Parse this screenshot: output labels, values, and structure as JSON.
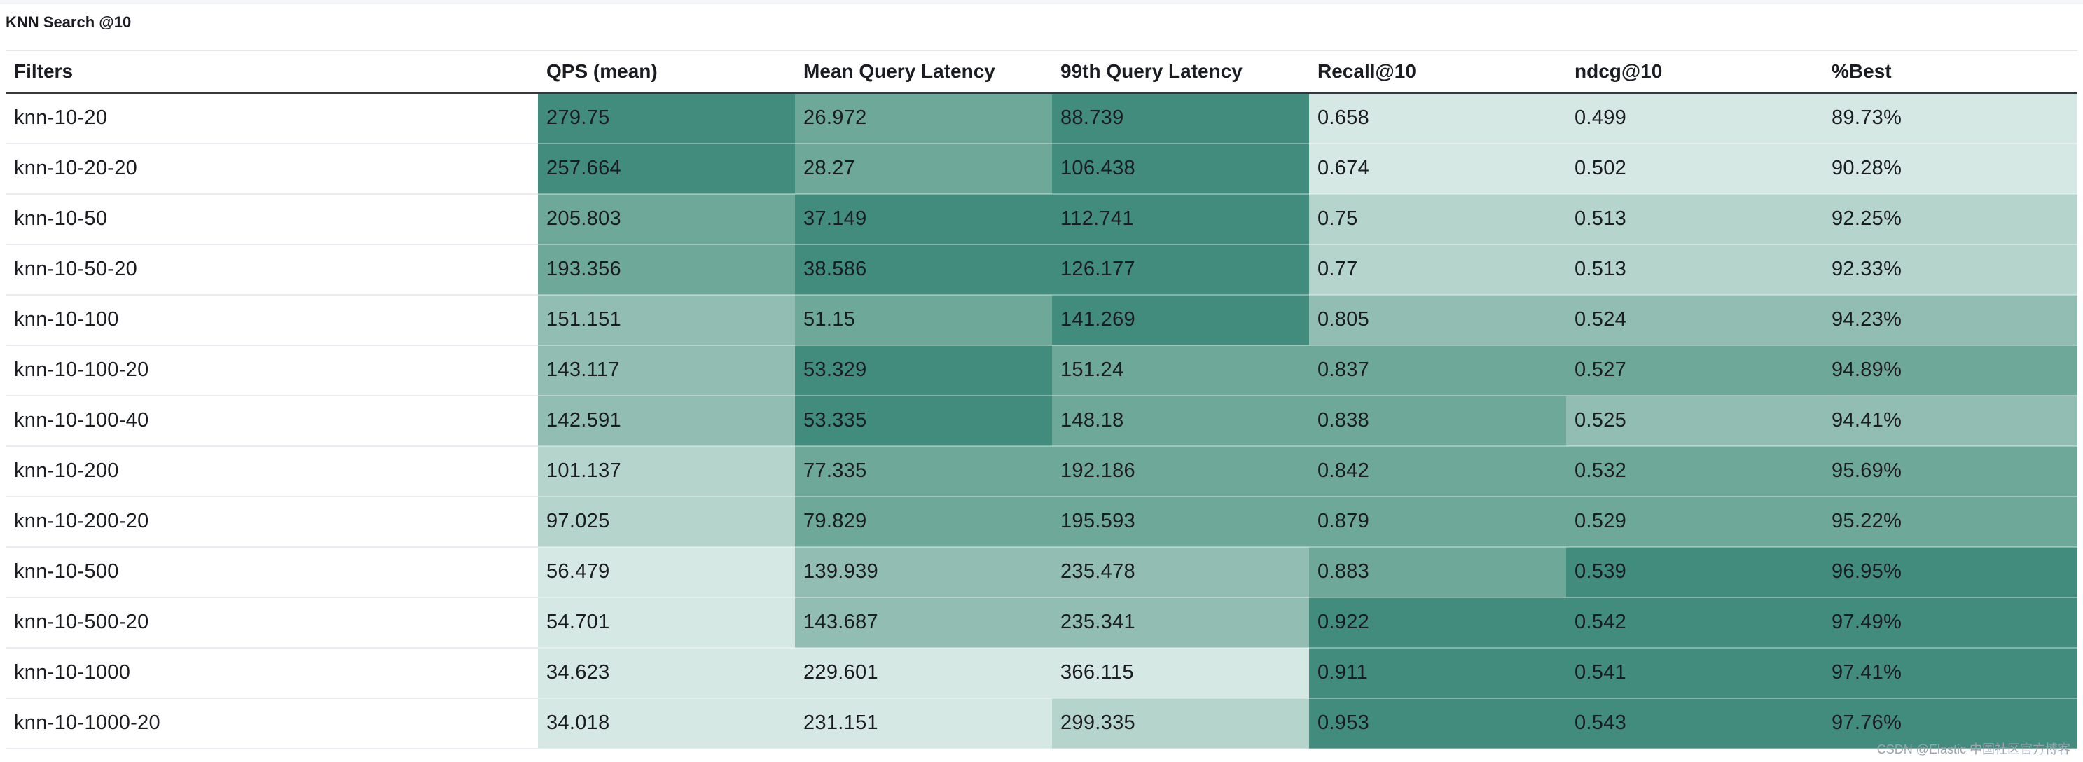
{
  "panel": {
    "title": "KNN Search @10"
  },
  "watermark": "CSDN @Elastic 中国社区官方博客",
  "colors": {
    "level1": "#d6e8e3",
    "level2": "#b5d5cc",
    "level3": "#91bdb2",
    "level4": "#6da899",
    "level5": "#418c7d",
    "header_rule": "#343741"
  },
  "chart_data": {
    "type": "table",
    "title": "KNN Search @10",
    "columns": [
      "Filters",
      "QPS (mean)",
      "Mean Query Latency",
      "99th Query Latency",
      "Recall@10",
      "ndcg@10",
      "%Best"
    ],
    "rows": [
      {
        "filter": "knn-10-20",
        "values": [
          "279.75",
          "26.972",
          "88.739",
          "0.658",
          "0.499",
          "89.73%"
        ],
        "shades": [
          5,
          4,
          5,
          1,
          1,
          1
        ]
      },
      {
        "filter": "knn-10-20-20",
        "values": [
          "257.664",
          "28.27",
          "106.438",
          "0.674",
          "0.502",
          "90.28%"
        ],
        "shades": [
          5,
          4,
          5,
          1,
          1,
          1
        ]
      },
      {
        "filter": "knn-10-50",
        "values": [
          "205.803",
          "37.149",
          "112.741",
          "0.75",
          "0.513",
          "92.25%"
        ],
        "shades": [
          4,
          5,
          5,
          2,
          2,
          2
        ]
      },
      {
        "filter": "knn-10-50-20",
        "values": [
          "193.356",
          "38.586",
          "126.177",
          "0.77",
          "0.513",
          "92.33%"
        ],
        "shades": [
          4,
          5,
          5,
          2,
          2,
          2
        ]
      },
      {
        "filter": "knn-10-100",
        "values": [
          "151.151",
          "51.15",
          "141.269",
          "0.805",
          "0.524",
          "94.23%"
        ],
        "shades": [
          3,
          4,
          5,
          3,
          3,
          3
        ]
      },
      {
        "filter": "knn-10-100-20",
        "values": [
          "143.117",
          "53.329",
          "151.24",
          "0.837",
          "0.527",
          "94.89%"
        ],
        "shades": [
          3,
          5,
          4,
          4,
          4,
          4
        ]
      },
      {
        "filter": "knn-10-100-40",
        "values": [
          "142.591",
          "53.335",
          "148.18",
          "0.838",
          "0.525",
          "94.41%"
        ],
        "shades": [
          3,
          5,
          4,
          4,
          3,
          3
        ]
      },
      {
        "filter": "knn-10-200",
        "values": [
          "101.137",
          "77.335",
          "192.186",
          "0.842",
          "0.532",
          "95.69%"
        ],
        "shades": [
          2,
          4,
          4,
          4,
          4,
          4
        ]
      },
      {
        "filter": "knn-10-200-20",
        "values": [
          "97.025",
          "79.829",
          "195.593",
          "0.879",
          "0.529",
          "95.22%"
        ],
        "shades": [
          2,
          4,
          4,
          4,
          4,
          4
        ]
      },
      {
        "filter": "knn-10-500",
        "values": [
          "56.479",
          "139.939",
          "235.478",
          "0.883",
          "0.539",
          "96.95%"
        ],
        "shades": [
          1,
          3,
          3,
          4,
          5,
          5
        ]
      },
      {
        "filter": "knn-10-500-20",
        "values": [
          "54.701",
          "143.687",
          "235.341",
          "0.922",
          "0.542",
          "97.49%"
        ],
        "shades": [
          1,
          3,
          3,
          5,
          5,
          5
        ]
      },
      {
        "filter": "knn-10-1000",
        "values": [
          "34.623",
          "229.601",
          "366.115",
          "0.911",
          "0.541",
          "97.41%"
        ],
        "shades": [
          1,
          1,
          1,
          5,
          5,
          5
        ]
      },
      {
        "filter": "knn-10-1000-20",
        "values": [
          "34.018",
          "231.151",
          "299.335",
          "0.953",
          "0.543",
          "97.76%"
        ],
        "shades": [
          1,
          1,
          2,
          5,
          5,
          5
        ]
      }
    ]
  }
}
